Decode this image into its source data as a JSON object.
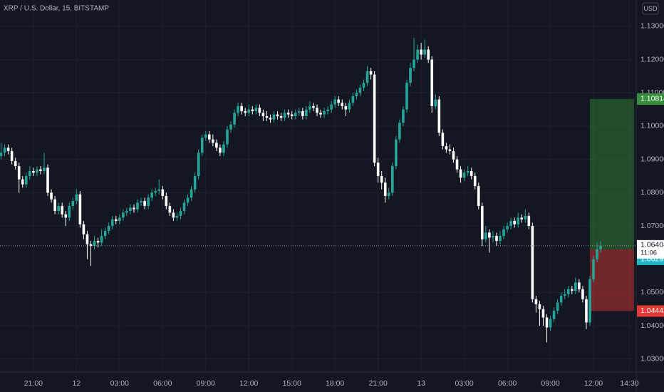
{
  "chart_data": {
    "type": "candlestick",
    "title": "XRP / U.S. Dollar, 15, BITSTAMP",
    "currency": "USD",
    "up_color": "#26a69a",
    "down_color": "#ffffff",
    "grid": true,
    "xlim": [
      -0.3,
      176.9
    ],
    "ylim": [
      1.0261,
      1.1379
    ],
    "xticks": [
      {
        "value": 9,
        "label": "21:00"
      },
      {
        "value": 21,
        "label": "12"
      },
      {
        "value": 33,
        "label": "03:00"
      },
      {
        "value": 45,
        "label": "06:00"
      },
      {
        "value": 57,
        "label": "09:00"
      },
      {
        "value": 69,
        "label": "12:00"
      },
      {
        "value": 81,
        "label": "15:00"
      },
      {
        "value": 93,
        "label": "18:00"
      },
      {
        "value": 105,
        "label": "21:00"
      },
      {
        "value": 117,
        "label": "13"
      },
      {
        "value": 129,
        "label": "03:00"
      },
      {
        "value": 141,
        "label": "06:00"
      },
      {
        "value": 153,
        "label": "09:00"
      },
      {
        "value": 165,
        "label": "12:00"
      },
      {
        "value": 175,
        "label": "14:30"
      }
    ],
    "yticks": [
      {
        "value": 1.03,
        "label": "1.03000"
      },
      {
        "value": 1.04,
        "label": "1.04000"
      },
      {
        "value": 1.05,
        "label": "1.05000"
      },
      {
        "value": 1.07,
        "label": "1.07000"
      },
      {
        "value": 1.08,
        "label": "1.08000"
      },
      {
        "value": 1.09,
        "label": "1.09000"
      },
      {
        "value": 1.1,
        "label": "1.10000"
      },
      {
        "value": 1.11,
        "label": "1.11000"
      },
      {
        "value": 1.12,
        "label": "1.12000"
      },
      {
        "value": 1.13,
        "label": "1.13000"
      }
    ],
    "last_price": 1.06404,
    "countdown": "11:06",
    "position": {
      "target": 1.10814,
      "entry": 1.06295,
      "stop": 1.04443,
      "target_color": "#388e3c",
      "entry_color": "#22b5c8",
      "stop_color": "#e53935"
    },
    "ohlc": [
      [
        1.091,
        1.095,
        1.09,
        1.092
      ],
      [
        1.092,
        1.0945,
        1.091,
        1.0935
      ],
      [
        1.0935,
        1.0945,
        1.0915,
        1.0925
      ],
      [
        1.0925,
        1.0935,
        1.0885,
        1.0895
      ],
      [
        1.0895,
        1.0905,
        1.087,
        1.088
      ],
      [
        1.088,
        1.089,
        1.08,
        1.084
      ],
      [
        1.084,
        1.085,
        1.0815,
        1.0825
      ],
      [
        1.0825,
        1.086,
        1.0815,
        1.085
      ],
      [
        1.085,
        1.088,
        1.084,
        1.0865
      ],
      [
        1.0865,
        1.0875,
        1.085,
        1.086
      ],
      [
        1.086,
        1.088,
        1.085,
        1.087
      ],
      [
        1.087,
        1.088,
        1.0855,
        1.0865
      ],
      [
        1.0865,
        1.092,
        1.0855,
        1.0875
      ],
      [
        1.0875,
        1.0885,
        1.079,
        1.08
      ],
      [
        1.08,
        1.081,
        1.077,
        1.078
      ],
      [
        1.078,
        1.079,
        1.0735,
        1.0745
      ],
      [
        1.0745,
        1.077,
        1.0735,
        1.076
      ],
      [
        1.076,
        1.077,
        1.0725,
        1.0735
      ],
      [
        1.0735,
        1.0745,
        1.07,
        1.0725
      ],
      [
        1.0725,
        1.077,
        1.0715,
        1.076
      ],
      [
        1.076,
        1.0785,
        1.075,
        1.0775
      ],
      [
        1.0775,
        1.081,
        1.0765,
        1.0795
      ],
      [
        1.0795,
        1.0805,
        1.0695,
        1.0705
      ],
      [
        1.0705,
        1.0715,
        1.066,
        1.0675
      ],
      [
        1.0675,
        1.0685,
        1.06,
        1.0645
      ],
      [
        1.0645,
        1.0655,
        1.058,
        1.064
      ],
      [
        1.064,
        1.067,
        1.063,
        1.0655
      ],
      [
        1.0655,
        1.0665,
        1.0635,
        1.065
      ],
      [
        1.065,
        1.069,
        1.064,
        1.067
      ],
      [
        1.067,
        1.0695,
        1.066,
        1.0685
      ],
      [
        1.0685,
        1.071,
        1.0675,
        1.07
      ],
      [
        1.07,
        1.073,
        1.069,
        1.072
      ],
      [
        1.072,
        1.073,
        1.0705,
        1.0715
      ],
      [
        1.0715,
        1.0735,
        1.0705,
        1.0725
      ],
      [
        1.0725,
        1.075,
        1.0715,
        1.074
      ],
      [
        1.074,
        1.0755,
        1.073,
        1.0745
      ],
      [
        1.0745,
        1.0765,
        1.0735,
        1.0755
      ],
      [
        1.0755,
        1.0765,
        1.074,
        1.075
      ],
      [
        1.075,
        1.078,
        1.074,
        1.077
      ],
      [
        1.077,
        1.0785,
        1.076,
        1.0775
      ],
      [
        1.0775,
        1.0785,
        1.075,
        1.076
      ],
      [
        1.076,
        1.0795,
        1.075,
        1.0785
      ],
      [
        1.0785,
        1.081,
        1.0775,
        1.08
      ],
      [
        1.08,
        1.0815,
        1.079,
        1.0805
      ],
      [
        1.0805,
        1.084,
        1.0795,
        1.081
      ],
      [
        1.081,
        1.082,
        1.078,
        1.079
      ],
      [
        1.079,
        1.08,
        1.075,
        1.076
      ],
      [
        1.076,
        1.077,
        1.073,
        1.074
      ],
      [
        1.074,
        1.075,
        1.0715,
        1.0725
      ],
      [
        1.0725,
        1.074,
        1.0715,
        1.073
      ],
      [
        1.073,
        1.0755,
        1.072,
        1.0745
      ],
      [
        1.0745,
        1.078,
        1.0735,
        1.077
      ],
      [
        1.077,
        1.0795,
        1.076,
        1.0785
      ],
      [
        1.0785,
        1.082,
        1.0775,
        1.081
      ],
      [
        1.081,
        1.086,
        1.08,
        1.085
      ],
      [
        1.085,
        1.093,
        1.084,
        1.092
      ],
      [
        1.092,
        1.0975,
        1.091,
        1.0965
      ],
      [
        1.0965,
        1.0985,
        1.0955,
        1.0975
      ],
      [
        1.0975,
        1.0985,
        1.095,
        1.096
      ],
      [
        1.096,
        1.0975,
        1.094,
        1.095
      ],
      [
        1.095,
        1.096,
        1.0925,
        1.0935
      ],
      [
        1.0935,
        1.0945,
        1.091,
        1.092
      ],
      [
        1.092,
        1.0955,
        1.091,
        1.0945
      ],
      [
        1.0945,
        1.1,
        1.0935,
        1.099
      ],
      [
        1.099,
        1.1015,
        1.098,
        1.1005
      ],
      [
        1.1005,
        1.105,
        1.0995,
        1.104
      ],
      [
        1.104,
        1.107,
        1.103,
        1.106
      ],
      [
        1.106,
        1.107,
        1.1035,
        1.1045
      ],
      [
        1.1045,
        1.1055,
        1.103,
        1.104
      ],
      [
        1.104,
        1.1065,
        1.103,
        1.105
      ],
      [
        1.105,
        1.106,
        1.1035,
        1.1045
      ],
      [
        1.1045,
        1.1065,
        1.1035,
        1.1055
      ],
      [
        1.1055,
        1.1065,
        1.103,
        1.104
      ],
      [
        1.104,
        1.105,
        1.1015,
        1.103
      ],
      [
        1.103,
        1.1045,
        1.1015,
        1.1025
      ],
      [
        1.1025,
        1.1035,
        1.101,
        1.102
      ],
      [
        1.102,
        1.1045,
        1.101,
        1.1035
      ],
      [
        1.1035,
        1.1045,
        1.102,
        1.103
      ],
      [
        1.103,
        1.104,
        1.1015,
        1.1025
      ],
      [
        1.1025,
        1.105,
        1.1015,
        1.104
      ],
      [
        1.104,
        1.105,
        1.1025,
        1.1035
      ],
      [
        1.1035,
        1.1045,
        1.102,
        1.103
      ],
      [
        1.103,
        1.105,
        1.102,
        1.104
      ],
      [
        1.104,
        1.1055,
        1.103,
        1.1045
      ],
      [
        1.1045,
        1.1055,
        1.102,
        1.103
      ],
      [
        1.103,
        1.106,
        1.102,
        1.105
      ],
      [
        1.105,
        1.1075,
        1.104,
        1.106
      ],
      [
        1.106,
        1.107,
        1.1045,
        1.1055
      ],
      [
        1.1055,
        1.1065,
        1.103,
        1.104
      ],
      [
        1.104,
        1.105,
        1.1025,
        1.1035
      ],
      [
        1.1035,
        1.1055,
        1.1025,
        1.1045
      ],
      [
        1.1045,
        1.106,
        1.1035,
        1.105
      ],
      [
        1.105,
        1.1075,
        1.104,
        1.1065
      ],
      [
        1.1065,
        1.109,
        1.1055,
        1.108
      ],
      [
        1.108,
        1.109,
        1.106,
        1.107
      ],
      [
        1.107,
        1.108,
        1.105,
        1.106
      ],
      [
        1.106,
        1.107,
        1.103,
        1.105
      ],
      [
        1.105,
        1.108,
        1.104,
        1.107
      ],
      [
        1.107,
        1.11,
        1.106,
        1.109
      ],
      [
        1.109,
        1.111,
        1.108,
        1.11
      ],
      [
        1.11,
        1.1125,
        1.109,
        1.1115
      ],
      [
        1.1115,
        1.114,
        1.1105,
        1.113
      ],
      [
        1.113,
        1.118,
        1.112,
        1.1165
      ],
      [
        1.1165,
        1.1175,
        1.114,
        1.1155
      ],
      [
        1.1155,
        1.1165,
        1.088,
        1.089
      ],
      [
        1.089,
        1.0905,
        1.083,
        1.085
      ],
      [
        1.085,
        1.0865,
        1.081,
        1.083
      ],
      [
        1.083,
        1.0845,
        1.077,
        1.079
      ],
      [
        1.079,
        1.0815,
        1.078,
        1.08
      ],
      [
        1.08,
        1.089,
        1.079,
        1.088
      ],
      [
        1.088,
        1.097,
        1.087,
        1.096
      ],
      [
        1.096,
        1.102,
        1.095,
        1.101
      ],
      [
        1.101,
        1.106,
        1.1,
        1.105
      ],
      [
        1.105,
        1.114,
        1.104,
        1.113
      ],
      [
        1.113,
        1.119,
        1.112,
        1.1175
      ],
      [
        1.1175,
        1.1265,
        1.1165,
        1.12
      ],
      [
        1.12,
        1.1245,
        1.119,
        1.123
      ],
      [
        1.123,
        1.125,
        1.12,
        1.1215
      ],
      [
        1.1215,
        1.126,
        1.1205,
        1.123
      ],
      [
        1.123,
        1.124,
        1.119,
        1.12
      ],
      [
        1.12,
        1.121,
        1.104,
        1.106
      ],
      [
        1.106,
        1.1095,
        1.105,
        1.108
      ],
      [
        1.108,
        1.109,
        1.097,
        1.098
      ],
      [
        1.098,
        1.099,
        1.093,
        1.094
      ],
      [
        1.094,
        1.095,
        1.092,
        1.093
      ],
      [
        1.093,
        1.0945,
        1.0915,
        1.0925
      ],
      [
        1.0925,
        1.0935,
        1.089,
        1.09
      ],
      [
        1.09,
        1.091,
        1.086,
        1.087
      ],
      [
        1.087,
        1.088,
        1.083,
        1.0845
      ],
      [
        1.0845,
        1.087,
        1.0835,
        1.086
      ],
      [
        1.086,
        1.088,
        1.085,
        1.0865
      ],
      [
        1.0865,
        1.0875,
        1.084,
        1.085
      ],
      [
        1.085,
        1.086,
        1.081,
        1.082
      ],
      [
        1.082,
        1.083,
        1.075,
        1.076
      ],
      [
        1.076,
        1.077,
        1.064,
        1.066
      ],
      [
        1.066,
        1.07,
        1.065,
        1.068
      ],
      [
        1.068,
        1.069,
        1.062,
        1.0665
      ],
      [
        1.0665,
        1.0685,
        1.065,
        1.067
      ],
      [
        1.067,
        1.068,
        1.064,
        1.0655
      ],
      [
        1.0655,
        1.0685,
        1.0645,
        1.067
      ],
      [
        1.067,
        1.07,
        1.066,
        1.069
      ],
      [
        1.069,
        1.071,
        1.068,
        1.07
      ],
      [
        1.07,
        1.0725,
        1.069,
        1.0715
      ],
      [
        1.0715,
        1.0725,
        1.0695,
        1.0705
      ],
      [
        1.0705,
        1.074,
        1.0695,
        1.0725
      ],
      [
        1.0725,
        1.0735,
        1.071,
        1.072
      ],
      [
        1.072,
        1.075,
        1.071,
        1.073
      ],
      [
        1.073,
        1.074,
        1.069,
        1.07
      ],
      [
        1.07,
        1.071,
        1.047,
        1.048
      ],
      [
        1.048,
        1.049,
        1.044,
        1.0465
      ],
      [
        1.0465,
        1.0475,
        1.04,
        1.045
      ],
      [
        1.045,
        1.046,
        1.04,
        1.0425
      ],
      [
        1.0425,
        1.0435,
        1.035,
        1.0395
      ],
      [
        1.0395,
        1.043,
        1.0385,
        1.042
      ],
      [
        1.042,
        1.0455,
        1.041,
        1.0445
      ],
      [
        1.0445,
        1.048,
        1.0435,
        1.047
      ],
      [
        1.047,
        1.05,
        1.046,
        1.049
      ],
      [
        1.049,
        1.051,
        1.048,
        1.0495
      ],
      [
        1.0495,
        1.052,
        1.0485,
        1.051
      ],
      [
        1.051,
        1.052,
        1.0495,
        1.0505
      ],
      [
        1.0505,
        1.0545,
        1.0495,
        1.053
      ],
      [
        1.053,
        1.054,
        1.05,
        1.051
      ],
      [
        1.051,
        1.052,
        1.047,
        1.048
      ],
      [
        1.048,
        1.049,
        1.039,
        1.041
      ],
      [
        1.041,
        1.055,
        1.04,
        1.054
      ],
      [
        1.054,
        1.061,
        1.053,
        1.06
      ],
      [
        1.06,
        1.065,
        1.059,
        1.063
      ],
      [
        1.063,
        1.0655,
        1.062,
        1.064
      ]
    ]
  }
}
